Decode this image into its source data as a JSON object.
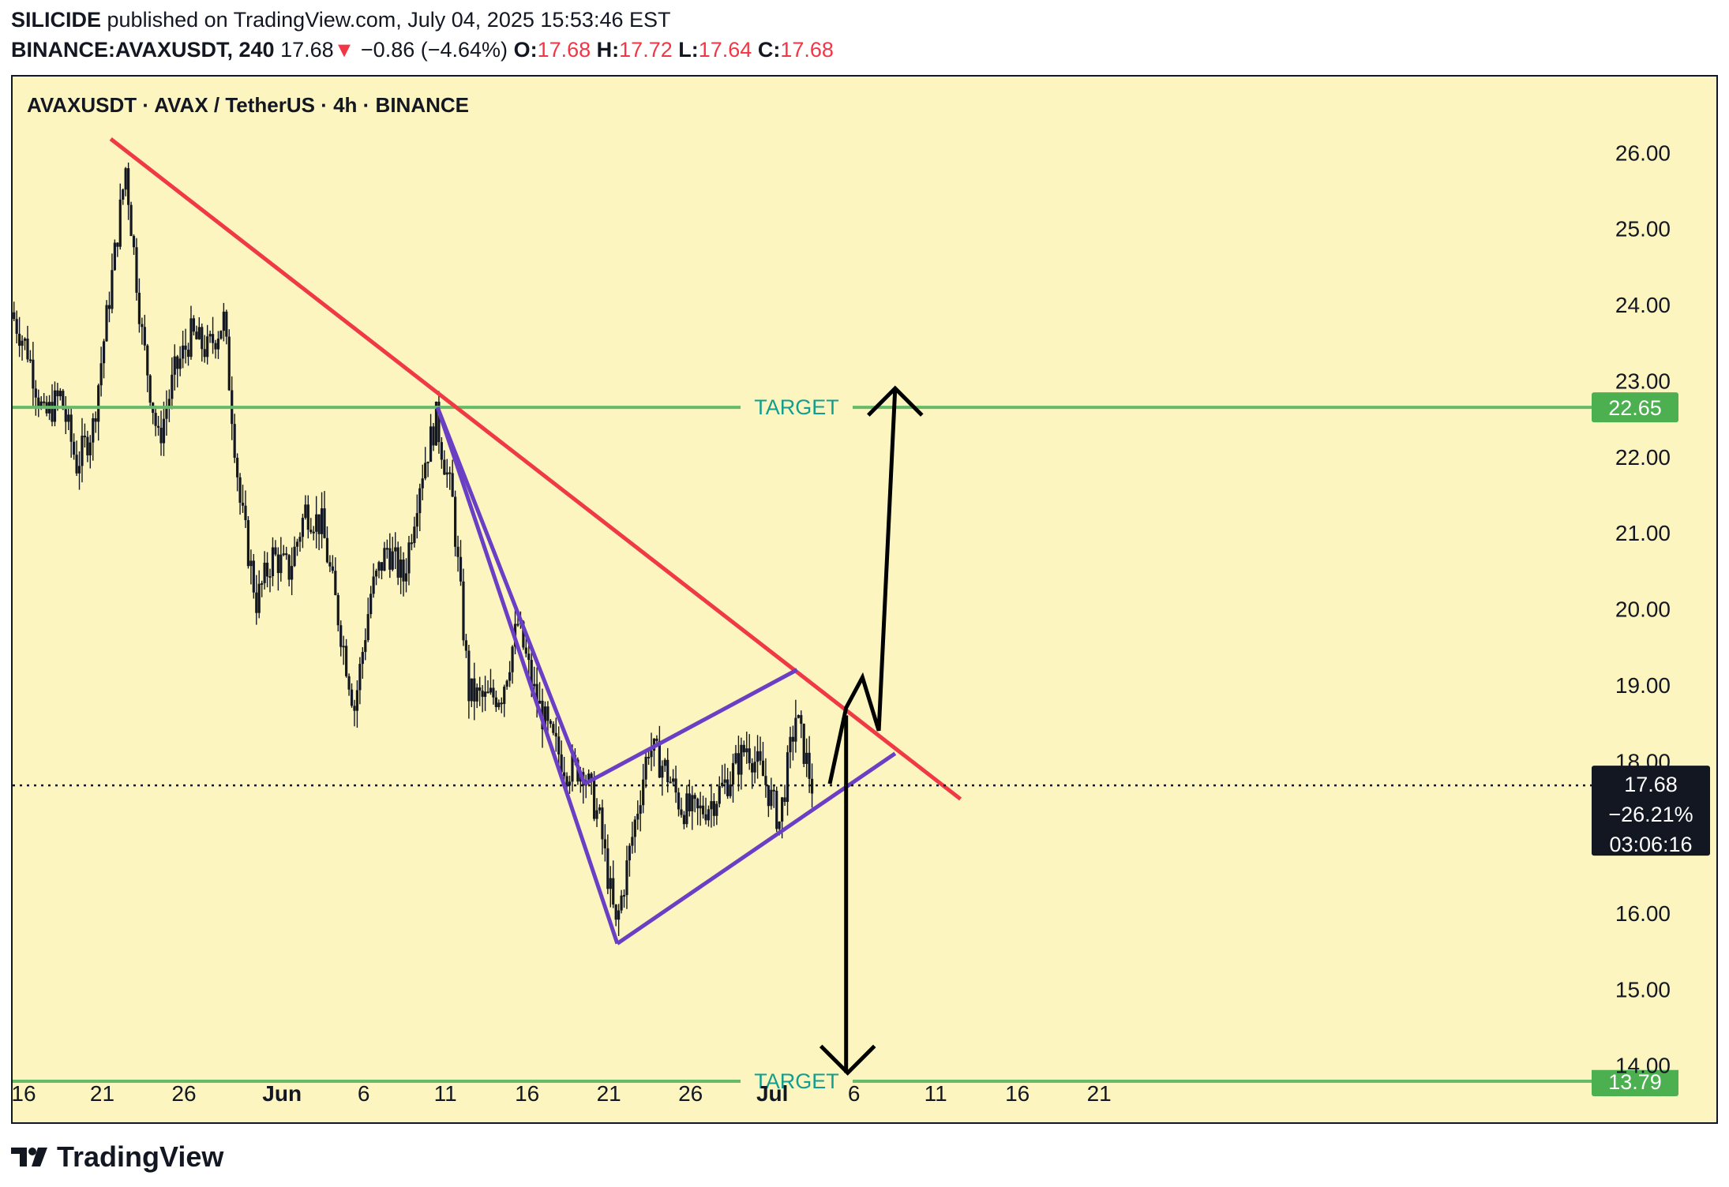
{
  "header": {
    "publisher": "SILICIDE",
    "published_text": " published on TradingView.com, July 04, 2025 15:53:46 EST",
    "symbol": "BINANCE:AVAXUSDT, 240",
    "last": "17.68",
    "arrow": "▼",
    "change": "−0.86 (−4.64%)",
    "o_label": "O:",
    "o_val": "17.68",
    "h_label": "H:",
    "h_val": "17.72",
    "l_label": "L:",
    "l_val": "17.64",
    "c_label": "C:",
    "c_val": "17.68"
  },
  "chart_title": "AVAXUSDT · AVAX / TetherUS · 4h · BINANCE",
  "colors": {
    "background": "#fcf5c0",
    "candle": "#131722",
    "trendline": "#ef3a45",
    "pattern": "#6a3fc4",
    "target_line": "#66bb6a",
    "target_text": "#129e8e",
    "badge_green": "#4caf50",
    "badge_dark": "#131722"
  },
  "chart_data": {
    "type": "candlestick",
    "title": "AVAXUSDT · AVAX / TetherUS · 4h · BINANCE",
    "ylim": [
      13.25,
      27.0
    ],
    "y_ticks": [
      "26.00",
      "25.00",
      "24.00",
      "23.00",
      "22.00",
      "21.00",
      "20.00",
      "19.00",
      "18.00",
      "16.00",
      "15.00",
      "14.00"
    ],
    "x_ticks": [
      "16",
      "21",
      "26",
      "Jun",
      "6",
      "11",
      "16",
      "21",
      "26",
      "Jul",
      "6",
      "11",
      "16",
      "21"
    ],
    "price_path": [
      [
        "2025-05-16",
        23.9
      ],
      [
        "2025-05-17",
        23.4
      ],
      [
        "2025-05-18",
        22.5
      ],
      [
        "2025-05-19",
        22.8
      ],
      [
        "2025-05-20",
        21.9
      ],
      [
        "2025-05-21",
        22.4
      ],
      [
        "2025-05-22",
        24.1
      ],
      [
        "2025-05-23",
        25.8
      ],
      [
        "2025-05-24",
        23.6
      ],
      [
        "2025-05-25",
        22.2
      ],
      [
        "2025-05-26",
        23.1
      ],
      [
        "2025-05-27",
        23.6
      ],
      [
        "2025-05-28",
        23.4
      ],
      [
        "2025-05-29",
        23.8
      ],
      [
        "2025-05-30",
        21.4
      ],
      [
        "2025-05-31",
        20.1
      ],
      [
        "2025-06-01",
        20.7
      ],
      [
        "2025-06-02",
        20.5
      ],
      [
        "2025-06-03",
        21.3
      ],
      [
        "2025-06-04",
        21.1
      ],
      [
        "2025-06-05",
        19.9
      ],
      [
        "2025-06-06",
        18.7
      ],
      [
        "2025-06-07",
        20.2
      ],
      [
        "2025-06-08",
        20.8
      ],
      [
        "2025-06-09",
        20.4
      ],
      [
        "2025-06-10",
        21.7
      ],
      [
        "2025-06-11",
        22.5
      ],
      [
        "2025-06-12",
        21.4
      ],
      [
        "2025-06-13",
        18.9
      ],
      [
        "2025-06-14",
        18.8
      ],
      [
        "2025-06-15",
        18.9
      ],
      [
        "2025-06-16",
        19.8
      ],
      [
        "2025-06-17",
        18.9
      ],
      [
        "2025-06-18",
        18.3
      ],
      [
        "2025-06-19",
        17.9
      ],
      [
        "2025-06-20",
        17.9
      ],
      [
        "2025-06-21",
        17.2
      ],
      [
        "2025-06-22",
        15.8
      ],
      [
        "2025-06-23",
        17.0
      ],
      [
        "2025-06-24",
        18.2
      ],
      [
        "2025-06-25",
        17.9
      ],
      [
        "2025-06-26",
        17.4
      ],
      [
        "2025-06-27",
        17.3
      ],
      [
        "2025-06-28",
        17.5
      ],
      [
        "2025-06-29",
        17.8
      ],
      [
        "2025-06-30",
        18.2
      ],
      [
        "2025-07-01",
        17.8
      ],
      [
        "2025-07-02",
        17.2
      ],
      [
        "2025-07-03",
        18.6
      ],
      [
        "2025-07-04",
        17.68
      ]
    ],
    "horizontal_lines": [
      {
        "label": "TARGET",
        "value": 22.65,
        "badge": "22.65"
      },
      {
        "label": "TARGET",
        "value": 13.79,
        "badge": "13.79"
      }
    ],
    "last_price_badge": {
      "price": "17.68",
      "change": "−26.21%",
      "countdown": "03:06:16"
    },
    "trendline": {
      "from": [
        "2025-05-22",
        26.18
      ],
      "to": [
        "2025-07-13",
        17.5
      ]
    },
    "pattern_lines": [
      {
        "from": [
          "2025-06-11",
          22.65
        ],
        "to": [
          "2025-06-20",
          17.7
        ]
      },
      {
        "from": [
          "2025-06-20",
          17.7
        ],
        "to": [
          "2025-07-03",
          19.2
        ]
      },
      {
        "from": [
          "2025-06-11",
          22.65
        ],
        "to": [
          "2025-06-22",
          15.6
        ]
      },
      {
        "from": [
          "2025-06-22",
          15.6
        ],
        "to": [
          "2025-07-09",
          18.1
        ]
      }
    ],
    "projections": [
      {
        "direction": "up",
        "path": [
          [
            "2025-07-05",
            17.7
          ],
          [
            "2025-07-06",
            18.7
          ],
          [
            "2025-07-07",
            19.1
          ],
          [
            "2025-07-08",
            18.4
          ],
          [
            "2025-07-09",
            22.9
          ]
        ]
      },
      {
        "direction": "down",
        "path": [
          [
            "2025-07-06",
            18.6
          ],
          [
            "2025-07-06",
            13.9
          ]
        ]
      }
    ]
  },
  "footer": {
    "brand": "TradingView"
  }
}
